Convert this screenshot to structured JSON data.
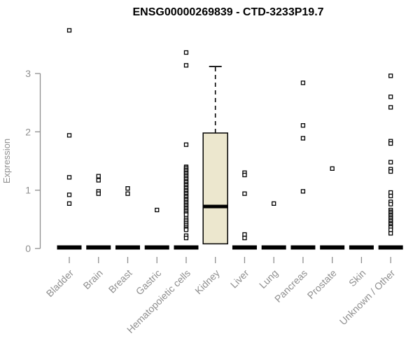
{
  "chart_data": {
    "type": "box",
    "title": "ENSG00000269839 - CTD-3233P19.7",
    "ylabel": "Expression",
    "xlabel": "",
    "ylim": [
      0,
      3.8
    ],
    "yticks": [
      0,
      1,
      2,
      3
    ],
    "grid": false,
    "legend": "none",
    "categories": [
      "Bladder",
      "Brain",
      "Breast",
      "Gastric",
      "Hematopoietic cells",
      "Kidney",
      "Liver",
      "Lung",
      "Pancreas",
      "Prostate",
      "Skin",
      "Unknown / Other"
    ],
    "boxes": [
      {
        "category": "Bladder",
        "q1": 0,
        "median": 0,
        "q3": 0,
        "whisker_low": 0,
        "whisker_high": 0
      },
      {
        "category": "Brain",
        "q1": 0,
        "median": 0,
        "q3": 0,
        "whisker_low": 0,
        "whisker_high": 0
      },
      {
        "category": "Breast",
        "q1": 0,
        "median": 0,
        "q3": 0,
        "whisker_low": 0,
        "whisker_high": 0
      },
      {
        "category": "Gastric",
        "q1": 0,
        "median": 0,
        "q3": 0,
        "whisker_low": 0,
        "whisker_high": 0
      },
      {
        "category": "Hematopoietic cells",
        "q1": 0,
        "median": 0,
        "q3": 0,
        "whisker_low": 0,
        "whisker_high": 0
      },
      {
        "category": "Kidney",
        "q1": 0.08,
        "median": 0.72,
        "q3": 1.98,
        "whisker_low": 0.08,
        "whisker_high": 3.12
      },
      {
        "category": "Liver",
        "q1": 0,
        "median": 0,
        "q3": 0,
        "whisker_low": 0,
        "whisker_high": 0
      },
      {
        "category": "Lung",
        "q1": 0,
        "median": 0,
        "q3": 0,
        "whisker_low": 0,
        "whisker_high": 0
      },
      {
        "category": "Pancreas",
        "q1": 0,
        "median": 0,
        "q3": 0,
        "whisker_low": 0,
        "whisker_high": 0
      },
      {
        "category": "Prostate",
        "q1": 0,
        "median": 0,
        "q3": 0,
        "whisker_low": 0,
        "whisker_high": 0
      },
      {
        "category": "Skin",
        "q1": 0,
        "median": 0,
        "q3": 0,
        "whisker_low": 0,
        "whisker_high": 0
      },
      {
        "category": "Unknown / Other",
        "q1": 0,
        "median": 0,
        "q3": 0,
        "whisker_low": 0,
        "whisker_high": 0
      }
    ],
    "points": [
      [
        3.74,
        1.94,
        1.22,
        0.92,
        0.77
      ],
      [
        1.24,
        1.17,
        0.98,
        0.94
      ],
      [
        1.03,
        0.94
      ],
      [
        0.66
      ],
      [
        3.36,
        3.14,
        1.78,
        1.4,
        1.38,
        1.35,
        1.33,
        1.3,
        1.28,
        1.25,
        1.23,
        1.2,
        1.18,
        1.15,
        1.13,
        1.1,
        1.08,
        1.05,
        1.03,
        1.0,
        0.98,
        0.95,
        0.93,
        0.9,
        0.88,
        0.85,
        0.83,
        0.8,
        0.78,
        0.75,
        0.73,
        0.7,
        0.68,
        0.65,
        0.63,
        0.6,
        0.58,
        0.52,
        0.49,
        0.46,
        0.43,
        0.4,
        0.37,
        0.34,
        0.32,
        0.22,
        0.18
      ],
      [],
      [
        1.3,
        1.26,
        0.94,
        0.24,
        0.18
      ],
      [
        0.77
      ],
      [
        2.84,
        2.11,
        1.89,
        0.98
      ],
      [
        1.37
      ],
      [],
      [
        2.96,
        2.6,
        2.42,
        1.84,
        1.8,
        1.48,
        1.36,
        1.32,
        0.96,
        0.9,
        0.8,
        0.76,
        0.66,
        0.63,
        0.61,
        0.58,
        0.56,
        0.53,
        0.51,
        0.48,
        0.46,
        0.43,
        0.41,
        0.38,
        0.36,
        0.32,
        0.26
      ]
    ],
    "colors": {
      "box_fill": "#ece7ce",
      "box_stroke": "#000000",
      "median": "#000000",
      "point_stroke": "#000000",
      "point_fill": "#ffffff",
      "axis": "#8f8f8f",
      "tick_label": "#8f8f8f",
      "title": "#000000",
      "background": "#ffffff"
    }
  }
}
